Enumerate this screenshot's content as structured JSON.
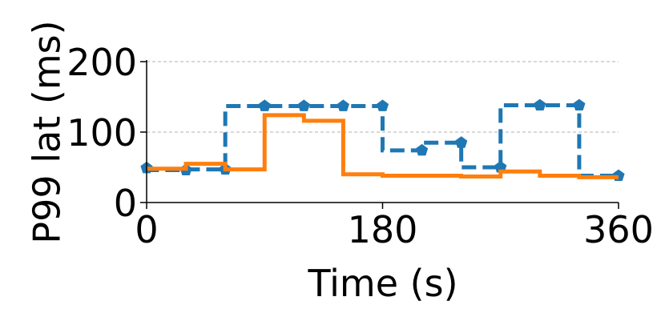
{
  "chart_data": {
    "type": "line",
    "step": "pre",
    "xlabel": "Time (s)",
    "ylabel": "P99 lat (ms)",
    "x": [
      0,
      30,
      60,
      90,
      120,
      150,
      180,
      210,
      240,
      270,
      300,
      330,
      360
    ],
    "series": [
      {
        "color": "#1f77b4",
        "linestyle": "dashed",
        "marker": "pentagon",
        "values": [
          49,
          46,
          47,
          137,
          137,
          137,
          137,
          74,
          85,
          50,
          138,
          138,
          38
        ]
      },
      {
        "color": "#ff7f0e",
        "linestyle": "solid",
        "values": [
          48,
          48,
          55,
          47,
          124,
          116,
          40,
          38,
          38,
          37,
          44,
          38,
          36
        ]
      }
    ],
    "xlim": [
      0,
      360
    ],
    "xticks": [
      0,
      180,
      360
    ],
    "ylim": [
      0,
      200
    ],
    "yticks": [
      0,
      100,
      200
    ],
    "grid": true
  }
}
